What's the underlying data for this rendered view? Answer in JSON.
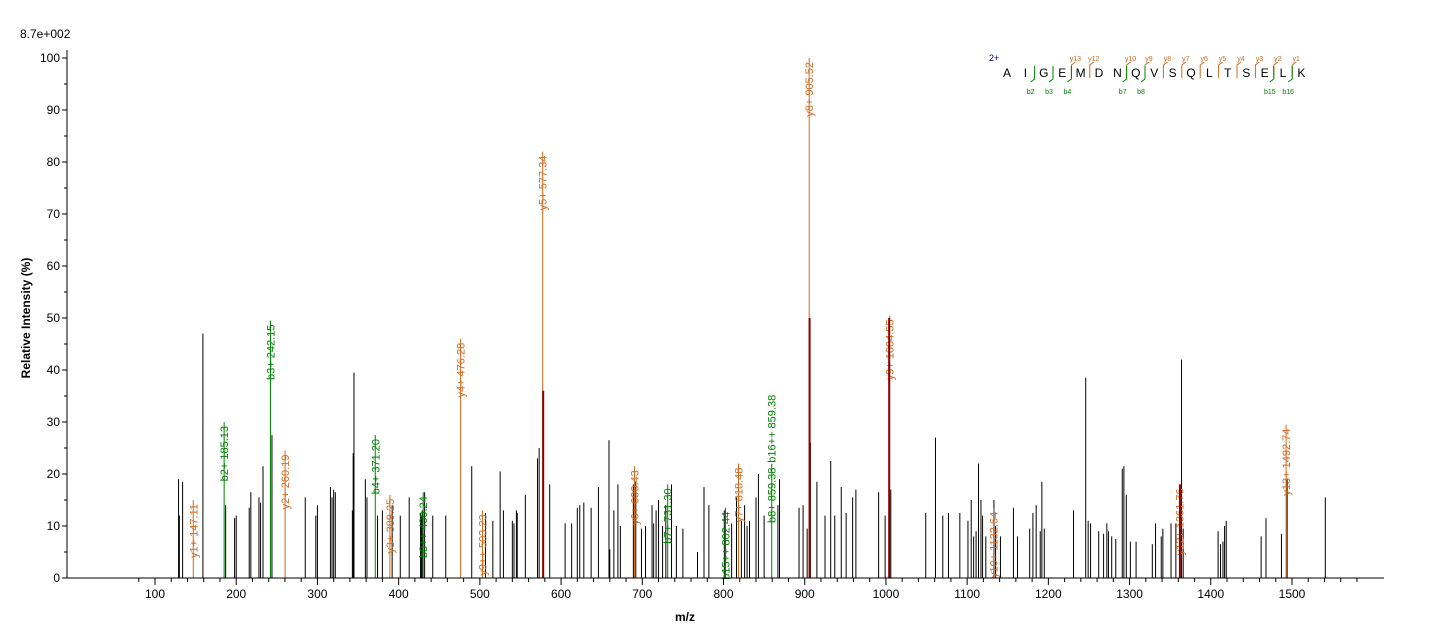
{
  "chart_data": {
    "type": "bar",
    "intensity_scale": "8.7e+002",
    "xlabel": "m/z",
    "ylabel": "Relative   Intensity (%)",
    "xlim": [
      90,
      1600
    ],
    "ylim": [
      0,
      100
    ],
    "x_ticks": [
      100,
      200,
      300,
      400,
      500,
      600,
      700,
      800,
      900,
      1000,
      1100,
      1200,
      1300,
      1400,
      1500
    ],
    "y_ticks": [
      0,
      10,
      20,
      30,
      40,
      50,
      60,
      70,
      80,
      90,
      100
    ],
    "colors": {
      "y_ion": "#d2691e",
      "b_ion": "#008000",
      "other": "#000000",
      "overlap": "#8b0000"
    },
    "labeled_peaks": [
      {
        "mz": 147.11,
        "intensity": 15,
        "label": "y1+ 147.11",
        "ion": "y"
      },
      {
        "mz": 185.13,
        "intensity": 30,
        "label": "b2+ 185.13",
        "ion": "b"
      },
      {
        "mz": 242.15,
        "intensity": 49.5,
        "label": "b3+ 242.15",
        "ion": "b"
      },
      {
        "mz": 260.19,
        "intensity": 24.5,
        "label": "y2+ 260.19",
        "ion": "y"
      },
      {
        "mz": 371.2,
        "intensity": 27.5,
        "label": "b4+ 371.20",
        "ion": "b"
      },
      {
        "mz": 389.25,
        "intensity": 16,
        "label": "y3+ 389.25",
        "ion": "y"
      },
      {
        "mz": 430.24,
        "intensity": 16.5,
        "label": "b8++ 430.24",
        "ion": "b"
      },
      {
        "mz": 476.28,
        "intensity": 46,
        "label": "y4+ 476.28",
        "ion": "y"
      },
      {
        "mz": 503.23,
        "intensity": 13,
        "label": "y9++ 503.23",
        "ion": "y"
      },
      {
        "mz": 577.34,
        "intensity": 82,
        "label": "y5+ 577.34",
        "ion": "y"
      },
      {
        "mz": 690.43,
        "intensity": 21.5,
        "label": "y6+ 690.43",
        "ion": "y"
      },
      {
        "mz": 731.3,
        "intensity": 18,
        "label": "b7+ 731.30",
        "ion": "b"
      },
      {
        "mz": 802.44,
        "intensity": 13.5,
        "label": "b15++ 802.44",
        "ion": "b"
      },
      {
        "mz": 818.48,
        "intensity": 22,
        "label": "y7+ 818.48",
        "ion": "y"
      },
      {
        "mz": 859.38,
        "intensity": 22,
        "label": "b8+ 859.38",
        "ion": "b"
      },
      {
        "mz": 905.52,
        "intensity": 100,
        "label": "y8+ 905.52",
        "ion": "y"
      },
      {
        "mz": 1004.55,
        "intensity": 50.5,
        "label": "y9+ 1004.55",
        "ion": "y"
      },
      {
        "mz": 1132.64,
        "intensity": 13.5,
        "label": "y10+ 1132.64",
        "ion": "y"
      },
      {
        "mz": 1361.76,
        "intensity": 18,
        "label": "y12+ 1361.76",
        "ion": "y"
      },
      {
        "mz": 1492.74,
        "intensity": 29.5,
        "label": "y13+ 1492.74",
        "ion": "y"
      }
    ],
    "extra_labels": [
      {
        "mz": 859.38,
        "intensity": 36,
        "label": "b16++ 859.38",
        "ion": "b"
      }
    ],
    "overlap_peaks": [
      {
        "mz": 578,
        "intensity": 36
      },
      {
        "mz": 906,
        "intensity": 50
      },
      {
        "mz": 1004,
        "intensity": 50
      },
      {
        "mz": 1362,
        "intensity": 18
      }
    ],
    "unlabeled_peaks": [
      {
        "mz": 129,
        "intensity": 19
      },
      {
        "mz": 130,
        "intensity": 12
      },
      {
        "mz": 134,
        "intensity": 18.5
      },
      {
        "mz": 159,
        "intensity": 47
      },
      {
        "mz": 187,
        "intensity": 14
      },
      {
        "mz": 198,
        "intensity": 11.5
      },
      {
        "mz": 200,
        "intensity": 12
      },
      {
        "mz": 216,
        "intensity": 13.5
      },
      {
        "mz": 218,
        "intensity": 16.5
      },
      {
        "mz": 228,
        "intensity": 15.5
      },
      {
        "mz": 230,
        "intensity": 14.5
      },
      {
        "mz": 233,
        "intensity": 21.5
      },
      {
        "mz": 244,
        "intensity": 27.5
      },
      {
        "mz": 285,
        "intensity": 15.5
      },
      {
        "mz": 298,
        "intensity": 12
      },
      {
        "mz": 300,
        "intensity": 14
      },
      {
        "mz": 316,
        "intensity": 17.5
      },
      {
        "mz": 318,
        "intensity": 15.5
      },
      {
        "mz": 320,
        "intensity": 17
      },
      {
        "mz": 322,
        "intensity": 16.5
      },
      {
        "mz": 343,
        "intensity": 13
      },
      {
        "mz": 344,
        "intensity": 24
      },
      {
        "mz": 345,
        "intensity": 39.5
      },
      {
        "mz": 359,
        "intensity": 19
      },
      {
        "mz": 361,
        "intensity": 15.5
      },
      {
        "mz": 374,
        "intensity": 12
      },
      {
        "mz": 380,
        "intensity": 13
      },
      {
        "mz": 392,
        "intensity": 14
      },
      {
        "mz": 402,
        "intensity": 12
      },
      {
        "mz": 413,
        "intensity": 15.5
      },
      {
        "mz": 427,
        "intensity": 12.5
      },
      {
        "mz": 428,
        "intensity": 12
      },
      {
        "mz": 429,
        "intensity": 13
      },
      {
        "mz": 432,
        "intensity": 16.5
      },
      {
        "mz": 442,
        "intensity": 12
      },
      {
        "mz": 458,
        "intensity": 12
      },
      {
        "mz": 490,
        "intensity": 21.5
      },
      {
        "mz": 507,
        "intensity": 12.5
      },
      {
        "mz": 516,
        "intensity": 11
      },
      {
        "mz": 525,
        "intensity": 20.5
      },
      {
        "mz": 529,
        "intensity": 13
      },
      {
        "mz": 540,
        "intensity": 11
      },
      {
        "mz": 542,
        "intensity": 10.5
      },
      {
        "mz": 545,
        "intensity": 13
      },
      {
        "mz": 546,
        "intensity": 12.5
      },
      {
        "mz": 556,
        "intensity": 16
      },
      {
        "mz": 571,
        "intensity": 23
      },
      {
        "mz": 573,
        "intensity": 25
      },
      {
        "mz": 586,
        "intensity": 18
      },
      {
        "mz": 605,
        "intensity": 10.5
      },
      {
        "mz": 613,
        "intensity": 10.5
      },
      {
        "mz": 620,
        "intensity": 13.5
      },
      {
        "mz": 623,
        "intensity": 14
      },
      {
        "mz": 628,
        "intensity": 14.5
      },
      {
        "mz": 637,
        "intensity": 13.5
      },
      {
        "mz": 646,
        "intensity": 17.5
      },
      {
        "mz": 659,
        "intensity": 26.5
      },
      {
        "mz": 660,
        "intensity": 5.5
      },
      {
        "mz": 665,
        "intensity": 13
      },
      {
        "mz": 670,
        "intensity": 18
      },
      {
        "mz": 673,
        "intensity": 10
      },
      {
        "mz": 689,
        "intensity": 18
      },
      {
        "mz": 692,
        "intensity": 18.5
      },
      {
        "mz": 699,
        "intensity": 9.5
      },
      {
        "mz": 704,
        "intensity": 10
      },
      {
        "mz": 712,
        "intensity": 14
      },
      {
        "mz": 714,
        "intensity": 10.5
      },
      {
        "mz": 717,
        "intensity": 13
      },
      {
        "mz": 720,
        "intensity": 15
      },
      {
        "mz": 725,
        "intensity": 10
      },
      {
        "mz": 729,
        "intensity": 14
      },
      {
        "mz": 736,
        "intensity": 18
      },
      {
        "mz": 742,
        "intensity": 10
      },
      {
        "mz": 750,
        "intensity": 9.5
      },
      {
        "mz": 768,
        "intensity": 5
      },
      {
        "mz": 776,
        "intensity": 17.5
      },
      {
        "mz": 782,
        "intensity": 14
      },
      {
        "mz": 801,
        "intensity": 13
      },
      {
        "mz": 810,
        "intensity": 10.5
      },
      {
        "mz": 816,
        "intensity": 15.5
      },
      {
        "mz": 822,
        "intensity": 11
      },
      {
        "mz": 826,
        "intensity": 14
      },
      {
        "mz": 829,
        "intensity": 10
      },
      {
        "mz": 832,
        "intensity": 11
      },
      {
        "mz": 840,
        "intensity": 15.5
      },
      {
        "mz": 843,
        "intensity": 20
      },
      {
        "mz": 850,
        "intensity": 12
      },
      {
        "mz": 867,
        "intensity": 14
      },
      {
        "mz": 869,
        "intensity": 19
      },
      {
        "mz": 893,
        "intensity": 13.5
      },
      {
        "mz": 898,
        "intensity": 14
      },
      {
        "mz": 903,
        "intensity": 9.5
      },
      {
        "mz": 907,
        "intensity": 26
      },
      {
        "mz": 915,
        "intensity": 18.5
      },
      {
        "mz": 925,
        "intensity": 12
      },
      {
        "mz": 932,
        "intensity": 22.5
      },
      {
        "mz": 937,
        "intensity": 12
      },
      {
        "mz": 945,
        "intensity": 17.5
      },
      {
        "mz": 951,
        "intensity": 12.5
      },
      {
        "mz": 959,
        "intensity": 15.5
      },
      {
        "mz": 963,
        "intensity": 17
      },
      {
        "mz": 991,
        "intensity": 16.5
      },
      {
        "mz": 999,
        "intensity": 12
      },
      {
        "mz": 1006,
        "intensity": 17
      },
      {
        "mz": 1049,
        "intensity": 12.5
      },
      {
        "mz": 1061,
        "intensity": 27
      },
      {
        "mz": 1070,
        "intensity": 12
      },
      {
        "mz": 1077,
        "intensity": 12.5
      },
      {
        "mz": 1091,
        "intensity": 12.5
      },
      {
        "mz": 1101,
        "intensity": 11
      },
      {
        "mz": 1105,
        "intensity": 15
      },
      {
        "mz": 1108,
        "intensity": 8
      },
      {
        "mz": 1111,
        "intensity": 9
      },
      {
        "mz": 1114,
        "intensity": 22
      },
      {
        "mz": 1117,
        "intensity": 15
      },
      {
        "mz": 1119,
        "intensity": 12
      },
      {
        "mz": 1123,
        "intensity": 8
      },
      {
        "mz": 1133,
        "intensity": 15
      },
      {
        "mz": 1135,
        "intensity": 10
      },
      {
        "mz": 1141,
        "intensity": 8
      },
      {
        "mz": 1157,
        "intensity": 13.5
      },
      {
        "mz": 1162,
        "intensity": 8
      },
      {
        "mz": 1177,
        "intensity": 9.5
      },
      {
        "mz": 1181,
        "intensity": 12.5
      },
      {
        "mz": 1185,
        "intensity": 14
      },
      {
        "mz": 1190,
        "intensity": 9
      },
      {
        "mz": 1192,
        "intensity": 18.5
      },
      {
        "mz": 1195,
        "intensity": 9.5
      },
      {
        "mz": 1231,
        "intensity": 13
      },
      {
        "mz": 1246,
        "intensity": 38.5
      },
      {
        "mz": 1249,
        "intensity": 11
      },
      {
        "mz": 1252,
        "intensity": 10.5
      },
      {
        "mz": 1262,
        "intensity": 9
      },
      {
        "mz": 1268,
        "intensity": 8.5
      },
      {
        "mz": 1272,
        "intensity": 10.5
      },
      {
        "mz": 1274,
        "intensity": 9
      },
      {
        "mz": 1278,
        "intensity": 8
      },
      {
        "mz": 1283,
        "intensity": 7.5
      },
      {
        "mz": 1291,
        "intensity": 21
      },
      {
        "mz": 1293,
        "intensity": 21.5
      },
      {
        "mz": 1296,
        "intensity": 16
      },
      {
        "mz": 1301,
        "intensity": 7
      },
      {
        "mz": 1308,
        "intensity": 7
      },
      {
        "mz": 1328,
        "intensity": 6.5
      },
      {
        "mz": 1332,
        "intensity": 10.5
      },
      {
        "mz": 1339,
        "intensity": 8
      },
      {
        "mz": 1341,
        "intensity": 9.5
      },
      {
        "mz": 1351,
        "intensity": 10.5
      },
      {
        "mz": 1357,
        "intensity": 10.5
      },
      {
        "mz": 1364,
        "intensity": 42
      },
      {
        "mz": 1366,
        "intensity": 9.5
      },
      {
        "mz": 1409,
        "intensity": 9
      },
      {
        "mz": 1412,
        "intensity": 6.5
      },
      {
        "mz": 1415,
        "intensity": 7
      },
      {
        "mz": 1417,
        "intensity": 10
      },
      {
        "mz": 1419,
        "intensity": 11
      },
      {
        "mz": 1462,
        "intensity": 8
      },
      {
        "mz": 1468,
        "intensity": 11.5
      },
      {
        "mz": 1487,
        "intensity": 8.5
      },
      {
        "mz": 1494,
        "intensity": 19
      },
      {
        "mz": 1541,
        "intensity": 15.5
      }
    ]
  },
  "sequence": {
    "charge": "2+",
    "residues": [
      "A",
      "I",
      "G",
      "E",
      "M",
      "D",
      "N",
      "Q",
      "V",
      "S",
      "Q",
      "L",
      "T",
      "S",
      "E",
      "L",
      "K"
    ],
    "y_ions": [
      {
        "after": 4,
        "label": "y13"
      },
      {
        "after": 5,
        "label": "y12"
      },
      {
        "after": 7,
        "label": "y10"
      },
      {
        "after": 8,
        "label": "y9"
      },
      {
        "after": 9,
        "label": "y8"
      },
      {
        "after": 10,
        "label": "y7"
      },
      {
        "after": 11,
        "label": "y6"
      },
      {
        "after": 12,
        "label": "y5"
      },
      {
        "after": 13,
        "label": "y4"
      },
      {
        "after": 14,
        "label": "y3"
      },
      {
        "after": 15,
        "label": "y2"
      },
      {
        "after": 16,
        "label": "y1"
      }
    ],
    "b_ions": [
      {
        "after": 2,
        "label": "b2"
      },
      {
        "after": 3,
        "label": "b3"
      },
      {
        "after": 4,
        "label": "b4"
      },
      {
        "after": 7,
        "label": "b7"
      },
      {
        "after": 8,
        "label": "b8"
      },
      {
        "after": 15,
        "label": "b15"
      },
      {
        "after": 16,
        "label": "b16"
      }
    ]
  }
}
